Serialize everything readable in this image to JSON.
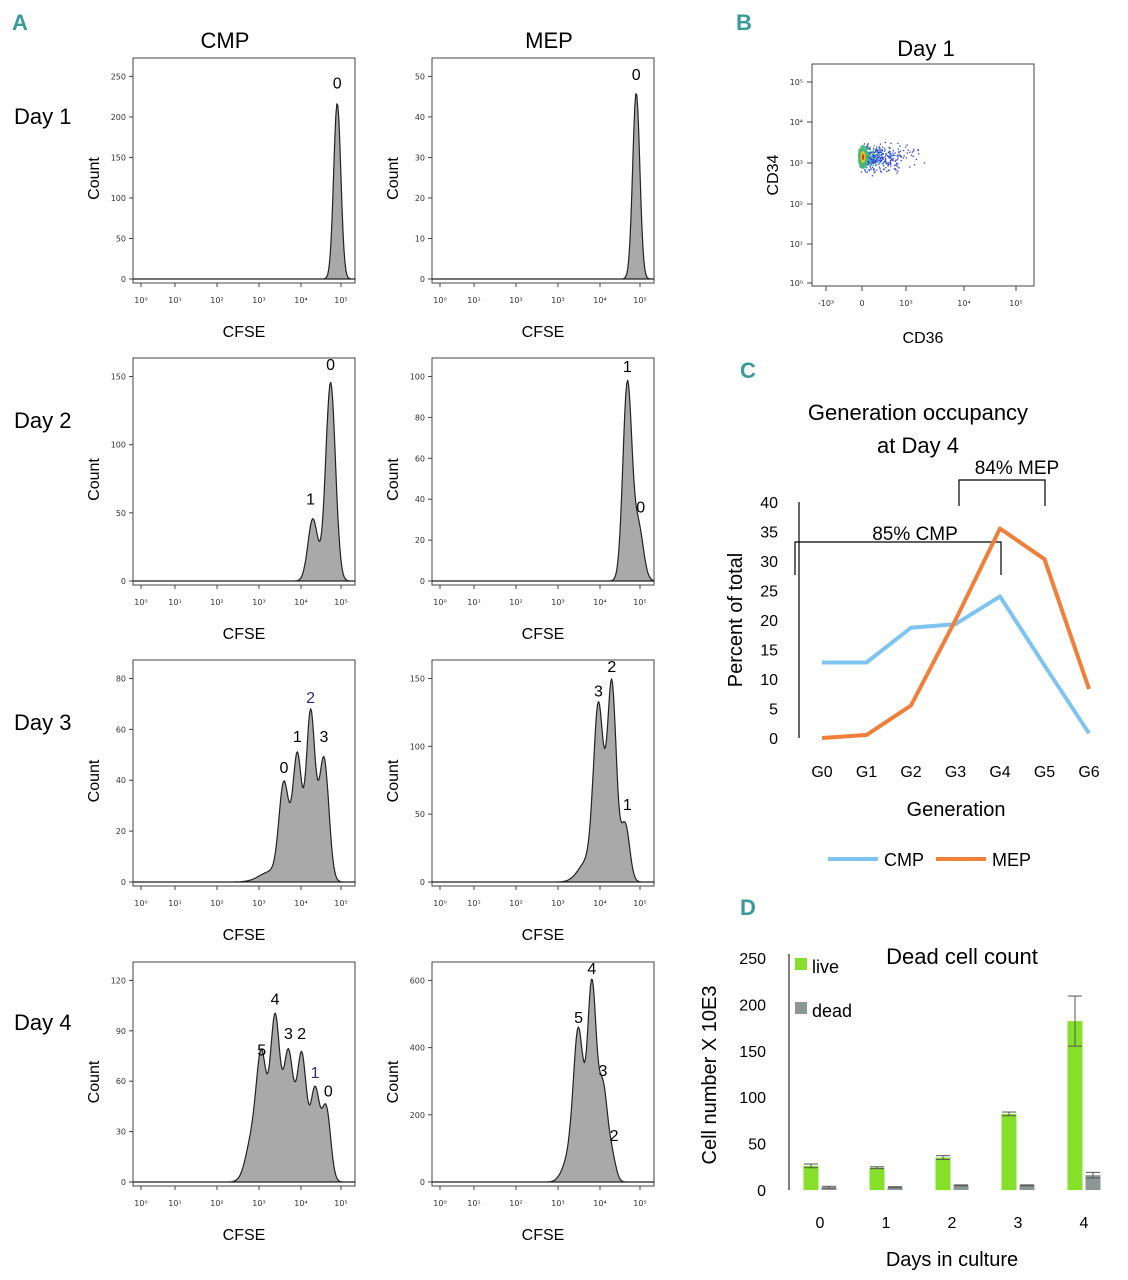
{
  "panels": {
    "a": "A",
    "b": "B",
    "c": "C",
    "d": "D"
  },
  "panel_a": {
    "col_titles": [
      "CMP",
      "MEP"
    ],
    "day_labels": [
      "Day 1",
      "Day 2",
      "Day 3",
      "Day 4"
    ],
    "xlabel": "CFSE",
    "ylabel": "Count",
    "x_ticks": [
      "10⁰",
      "10¹",
      "10²",
      "10³",
      "10⁴",
      "10⁵"
    ],
    "y_ticks": [
      [
        [
          "0",
          "50",
          "100",
          "150",
          "200",
          "250"
        ],
        [
          "0",
          "10",
          "20",
          "30",
          "40",
          "50"
        ]
      ],
      [
        [
          "0",
          "50",
          "100",
          "150"
        ],
        [
          "0",
          "20",
          "40",
          "60",
          "80",
          "100"
        ]
      ],
      [
        [
          "0",
          "20",
          "40",
          "60",
          "80"
        ],
        [
          "0",
          "50",
          "100",
          "150"
        ]
      ],
      [
        [
          "0",
          "30",
          "60",
          "90",
          "120"
        ],
        [
          "0",
          "200",
          "400",
          "600"
        ]
      ]
    ],
    "peak_labels": [
      [
        [
          "0"
        ],
        [
          "0"
        ]
      ],
      [
        [
          "0",
          "1"
        ],
        [
          "1",
          "0"
        ]
      ],
      [
        [
          "3",
          "2",
          "1",
          "0"
        ],
        [
          "3",
          "2",
          "1"
        ]
      ],
      [
        [
          "5",
          "4",
          "3",
          "2",
          "1",
          "0"
        ],
        [
          "5",
          "4",
          "3",
          "2"
        ]
      ]
    ]
  },
  "panel_b": {
    "title": "Day 1",
    "xlabel": "CD36",
    "ylabel": "CD34",
    "x_ticks": [
      "-10³",
      "0",
      "10³",
      "10⁴",
      "10⁵"
    ],
    "y_ticks": [
      "10⁰",
      "10¹",
      "10²",
      "10³",
      "10⁴",
      "10⁵"
    ]
  },
  "chart_data": [
    {
      "type": "line",
      "title": "Generation occupancy at Day 4",
      "title_lines": [
        "Generation occupancy",
        "at Day 4"
      ],
      "categories": [
        "G0",
        "G1",
        "G2",
        "G3",
        "G4",
        "G5",
        "G6"
      ],
      "series": [
        {
          "name": "CMP",
          "color": "#7fc4f0",
          "values": [
            12.8,
            12.8,
            18.7,
            19.3,
            24.0,
            12.3,
            0.8
          ]
        },
        {
          "name": "MEP",
          "color": "#f07f3a",
          "values": [
            0.0,
            0.5,
            5.5,
            20.0,
            35.5,
            30.3,
            8.3
          ]
        }
      ],
      "xlabel": "Generation",
      "ylabel": "Percent of total",
      "ylim": [
        0,
        40
      ],
      "y_ticks": [
        "0",
        "5",
        "10",
        "15",
        "20",
        "25",
        "30",
        "35",
        "40"
      ],
      "annotations": [
        "85% CMP",
        "84% MEP"
      ]
    },
    {
      "type": "bar",
      "title": "Dead cell count",
      "categories": [
        "0",
        "1",
        "2",
        "3",
        "4"
      ],
      "series": [
        {
          "name": "live",
          "color": "#86e02a",
          "values": [
            26,
            24,
            35,
            82,
            182
          ],
          "errors": [
            2,
            1,
            2,
            2,
            27
          ]
        },
        {
          "name": "dead",
          "color": "#8c9696",
          "values": [
            3,
            3,
            5,
            5,
            16
          ],
          "errors": [
            1,
            0.5,
            0.5,
            0.5,
            3
          ]
        }
      ],
      "xlabel": "Days in culture",
      "ylabel": "Cell number X 10E3",
      "ylim": [
        0,
        250
      ],
      "y_ticks": [
        "0",
        "50",
        "100",
        "150",
        "200",
        "250"
      ]
    }
  ]
}
